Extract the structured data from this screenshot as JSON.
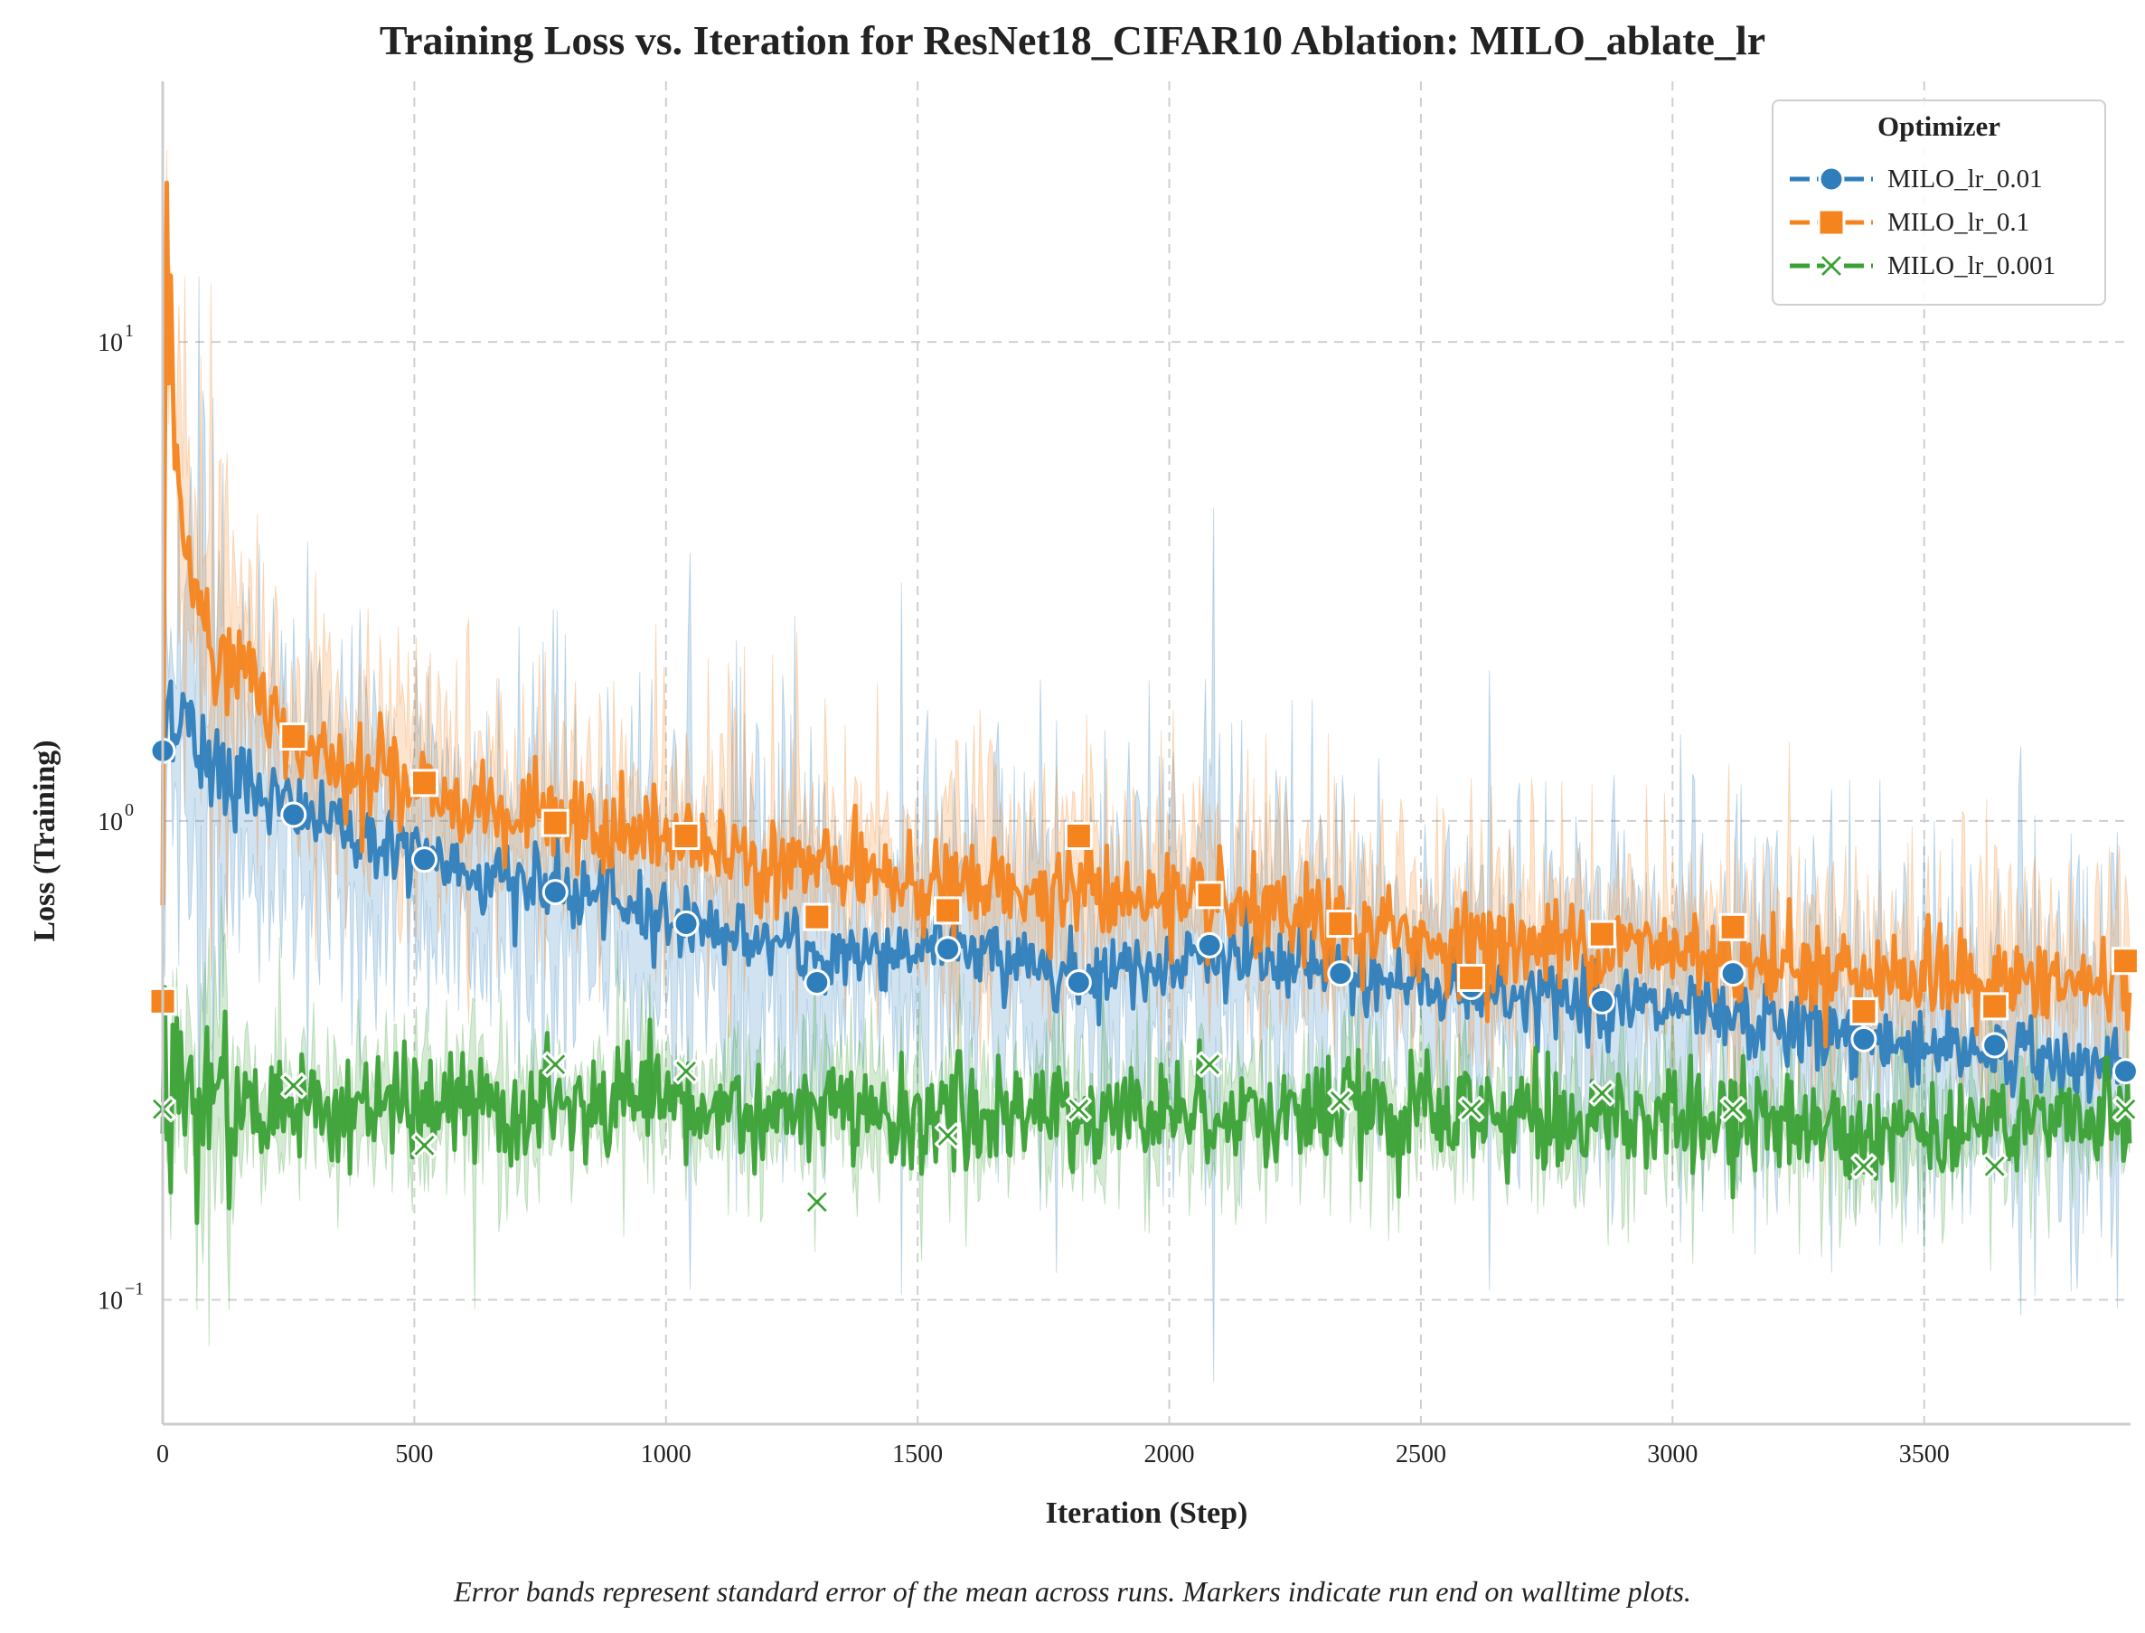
{
  "chart_data": {
    "type": "line",
    "title": "Training Loss vs. Iteration for ResNet18_CIFAR10 Ablation: MILO_ablate_lr",
    "xlabel": "Iteration (Step)",
    "ylabel": "Loss (Training)",
    "footnote": "Error bands represent standard error of the mean across runs. Markers indicate run end on walltime plots.",
    "xlim": [
      0,
      3910
    ],
    "ylim": [
      0.055,
      35
    ],
    "yscale": "log",
    "x_ticks": [
      0,
      500,
      1000,
      1500,
      2000,
      2500,
      3000,
      3500
    ],
    "x_tick_labels": [
      "0",
      "500",
      "1000",
      "1500",
      "2000",
      "2500",
      "3000",
      "3500"
    ],
    "y_ticks": [
      0.1,
      1,
      10
    ],
    "y_tick_labels": [
      {
        "base": "10",
        "exp": "−1"
      },
      {
        "base": "10",
        "exp": "0"
      },
      {
        "base": "10",
        "exp": "1"
      }
    ],
    "grid": true,
    "legend": {
      "title": "Optimizer",
      "placement": "top-right"
    },
    "marker_x": [
      0,
      260,
      520,
      780,
      1040,
      1300,
      1560,
      1820,
      2080,
      2340,
      2600,
      2860,
      3120,
      3380,
      3640,
      3900
    ],
    "series": [
      {
        "name": "MILO_lr_0.01",
        "color": "#2f7ebc",
        "marker": "circle",
        "draw_order": 1,
        "noise": 0.09,
        "band": 0.55,
        "curve": [
          [
            0,
            1.4
          ],
          [
            15,
            1.85
          ],
          [
            60,
            1.45
          ],
          [
            260,
            1.05
          ],
          [
            520,
            0.83
          ],
          [
            780,
            0.72
          ],
          [
            1040,
            0.62
          ],
          [
            1300,
            0.52
          ],
          [
            1560,
            0.55
          ],
          [
            1820,
            0.48
          ],
          [
            2080,
            0.52
          ],
          [
            2340,
            0.48
          ],
          [
            2600,
            0.44
          ],
          [
            2860,
            0.42
          ],
          [
            3120,
            0.38
          ],
          [
            3380,
            0.35
          ],
          [
            3640,
            0.33
          ],
          [
            3910,
            0.3
          ]
        ],
        "markers_y": [
          1.4,
          1.03,
          0.83,
          0.71,
          0.61,
          0.46,
          0.54,
          0.46,
          0.55,
          0.48,
          0.45,
          0.42,
          0.48,
          0.35,
          0.34,
          0.3
        ]
      },
      {
        "name": "MILO_lr_0.1",
        "color": "#f5841f",
        "marker": "square",
        "draw_order": 2,
        "noise": 0.11,
        "band": 0.35,
        "curve": [
          [
            0,
            0.42
          ],
          [
            6,
            21
          ],
          [
            20,
            8
          ],
          [
            40,
            3.6
          ],
          [
            100,
            2.4
          ],
          [
            260,
            1.5
          ],
          [
            520,
            1.15
          ],
          [
            780,
            0.98
          ],
          [
            1040,
            0.9
          ],
          [
            1300,
            0.8
          ],
          [
            1560,
            0.72
          ],
          [
            1820,
            0.72
          ],
          [
            2080,
            0.65
          ],
          [
            2340,
            0.6
          ],
          [
            2600,
            0.55
          ],
          [
            2860,
            0.55
          ],
          [
            3120,
            0.52
          ],
          [
            3380,
            0.48
          ],
          [
            3640,
            0.46
          ],
          [
            3910,
            0.45
          ]
        ],
        "markers_y": [
          0.42,
          1.5,
          1.2,
          0.99,
          0.93,
          0.63,
          0.65,
          0.93,
          0.7,
          0.61,
          0.47,
          0.58,
          0.6,
          0.4,
          0.41,
          0.51
        ]
      },
      {
        "name": "MILO_lr_0.001",
        "color": "#3ba135",
        "marker": "x",
        "draw_order": 3,
        "noise": 0.13,
        "band": 0.22,
        "curve": [
          [
            0,
            0.26
          ],
          [
            500,
            0.25
          ],
          [
            1000,
            0.25
          ],
          [
            1500,
            0.24
          ],
          [
            2000,
            0.25
          ],
          [
            2500,
            0.24
          ],
          [
            3000,
            0.24
          ],
          [
            3500,
            0.23
          ],
          [
            3910,
            0.24
          ]
        ],
        "markers_y": [
          0.25,
          0.28,
          0.21,
          0.31,
          0.3,
          0.16,
          0.22,
          0.25,
          0.31,
          0.26,
          0.25,
          0.27,
          0.25,
          0.19,
          0.19,
          0.25
        ]
      }
    ]
  }
}
